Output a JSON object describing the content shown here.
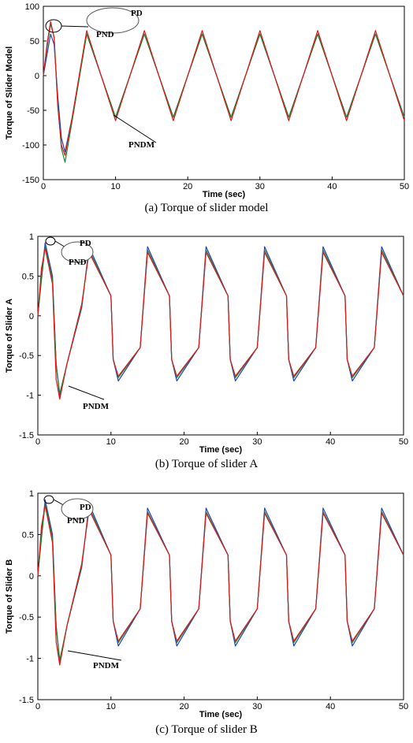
{
  "colors": {
    "pd": "#1f3fd0",
    "pnd": "#1a8a2a",
    "pndm": "#e01818",
    "axis": "#000000"
  },
  "chart_data": [
    {
      "type": "line",
      "caption": "(a)    Torque of slider model",
      "xlabel": "Time (sec)",
      "ylabel": "Torque of Slider Model",
      "xlim": [
        0,
        50
      ],
      "ylim": [
        -150,
        100
      ],
      "xticks": [
        0,
        10,
        20,
        30,
        40,
        50
      ],
      "yticks": [
        -150,
        -100,
        -50,
        0,
        50,
        100
      ],
      "grid": false,
      "period": 8,
      "series": [
        {
          "name": "PD",
          "x": [
            0,
            0.5,
            1,
            1.5,
            2,
            2.5,
            3,
            4,
            6,
            10,
            14,
            18,
            22,
            26,
            30,
            34,
            38,
            42,
            46,
            50
          ],
          "y": [
            0,
            30,
            60,
            45,
            -30,
            -90,
            -110,
            -60,
            60,
            -60,
            60,
            -60,
            60,
            -60,
            60,
            -60,
            60,
            -60,
            60,
            -60
          ]
        },
        {
          "name": "PND",
          "x": [
            0,
            0.5,
            1,
            1.5,
            2,
            2.5,
            3,
            4,
            6,
            10,
            14,
            18,
            22,
            26,
            30,
            34,
            38,
            42,
            46,
            50
          ],
          "y": [
            0,
            40,
            75,
            55,
            -40,
            -105,
            -125,
            -65,
            60,
            -60,
            60,
            -60,
            60,
            -60,
            60,
            -60,
            60,
            -60,
            60,
            -60
          ]
        },
        {
          "name": "PNDM",
          "x": [
            0,
            0.5,
            1,
            1.5,
            2,
            2.5,
            3,
            4,
            6,
            10,
            14,
            18,
            22,
            26,
            30,
            34,
            38,
            42,
            46,
            50
          ],
          "y": [
            0,
            45,
            78,
            55,
            -45,
            -100,
            -115,
            -60,
            65,
            -65,
            65,
            -65,
            65,
            -65,
            65,
            -65,
            65,
            -65,
            65,
            -65
          ]
        }
      ],
      "annotations": [
        "PD",
        "PND",
        "PNDM"
      ]
    },
    {
      "type": "line",
      "caption": "(b)    Torque of slider A",
      "xlabel": "Time (sec)",
      "ylabel": "Torque of Slider A",
      "xlim": [
        0,
        50
      ],
      "ylim": [
        -1.5,
        1
      ],
      "xticks": [
        0,
        10,
        20,
        30,
        40,
        50
      ],
      "yticks": [
        -1.5,
        -1,
        -0.5,
        0,
        0.5,
        1
      ],
      "grid": false,
      "period": 8,
      "series": [
        {
          "name": "PD",
          "x": [
            0,
            0.5,
            1,
            2,
            2.5,
            3,
            4,
            6,
            7,
            10,
            10.3,
            11,
            14,
            15,
            18,
            18.3,
            19,
            22,
            23,
            26,
            26.3,
            27,
            30,
            31,
            34,
            34.3,
            35,
            38,
            39,
            42,
            42.3,
            43,
            46,
            47,
            50
          ],
          "y": [
            0,
            0.5,
            0.92,
            0.5,
            -0.6,
            -1.02,
            -0.6,
            0.1,
            0.87,
            0.25,
            -0.55,
            -0.82,
            -0.4,
            0.87,
            0.25,
            -0.55,
            -0.82,
            -0.4,
            0.87,
            0.25,
            -0.55,
            -0.82,
            -0.4,
            0.87,
            0.25,
            -0.55,
            -0.82,
            -0.4,
            0.87,
            0.25,
            -0.55,
            -0.82,
            -0.4,
            0.87,
            0.25
          ]
        },
        {
          "name": "PND",
          "x": [
            0,
            0.5,
            1,
            2,
            2.5,
            3,
            4,
            6,
            7,
            10,
            10.3,
            11,
            14,
            15,
            18,
            18.3,
            19,
            22,
            23,
            26,
            26.3,
            27,
            30,
            31,
            34,
            34.3,
            35,
            38,
            39,
            42,
            42.3,
            43,
            46,
            47,
            50
          ],
          "y": [
            0,
            0.45,
            0.88,
            0.45,
            -0.6,
            -0.98,
            -0.6,
            0.12,
            0.83,
            0.25,
            -0.55,
            -0.78,
            -0.4,
            0.83,
            0.25,
            -0.55,
            -0.78,
            -0.4,
            0.83,
            0.25,
            -0.55,
            -0.78,
            -0.4,
            0.83,
            0.25,
            -0.55,
            -0.78,
            -0.4,
            0.83,
            0.25,
            -0.55,
            -0.78,
            -0.4,
            0.83,
            0.25
          ]
        },
        {
          "name": "PNDM",
          "x": [
            0,
            0.5,
            1,
            2,
            2.5,
            3,
            4,
            6,
            7,
            10,
            10.3,
            11,
            14,
            15,
            18,
            18.3,
            19,
            22,
            23,
            26,
            26.3,
            27,
            30,
            31,
            34,
            34.3,
            35,
            38,
            39,
            42,
            42.3,
            43,
            46,
            47,
            50
          ],
          "y": [
            0,
            0.6,
            0.85,
            0.4,
            -0.8,
            -1.05,
            -0.6,
            0.15,
            0.8,
            0.25,
            -0.55,
            -0.76,
            -0.4,
            0.8,
            0.25,
            -0.55,
            -0.76,
            -0.4,
            0.8,
            0.25,
            -0.55,
            -0.76,
            -0.4,
            0.8,
            0.25,
            -0.55,
            -0.76,
            -0.4,
            0.8,
            0.25,
            -0.55,
            -0.76,
            -0.4,
            0.8,
            0.25
          ]
        }
      ],
      "annotations": [
        "PD",
        "PND",
        "PNDM"
      ]
    },
    {
      "type": "line",
      "caption": "(c)    Torque of slider B",
      "xlabel": "Time (sec)",
      "ylabel": "Torque of Slider B",
      "xlim": [
        0,
        50
      ],
      "ylim": [
        -1.5,
        1
      ],
      "xticks": [
        0,
        10,
        20,
        30,
        40,
        50
      ],
      "yticks": [
        -1.5,
        -1,
        -0.5,
        0,
        0.5,
        1
      ],
      "grid": false,
      "period": 8,
      "series": [
        {
          "name": "PD",
          "x": [
            0,
            0.5,
            1,
            2,
            2.5,
            3,
            4,
            6,
            7,
            10,
            10.3,
            11,
            14,
            15,
            18,
            18.3,
            19,
            22,
            23,
            26,
            26.3,
            27,
            30,
            31,
            34,
            34.3,
            35,
            38,
            39,
            42,
            42.3,
            43,
            46,
            47,
            50
          ],
          "y": [
            0,
            0.5,
            0.92,
            0.5,
            -0.6,
            -1.06,
            -0.6,
            0.1,
            0.87,
            0.25,
            -0.55,
            -0.85,
            -0.4,
            0.82,
            0.25,
            -0.55,
            -0.85,
            -0.4,
            0.82,
            0.25,
            -0.55,
            -0.85,
            -0.4,
            0.82,
            0.25,
            -0.55,
            -0.85,
            -0.4,
            0.82,
            0.25,
            -0.55,
            -0.85,
            -0.4,
            0.82,
            0.25
          ]
        },
        {
          "name": "PND",
          "x": [
            0,
            0.5,
            1,
            2,
            2.5,
            3,
            4,
            6,
            7,
            10,
            10.3,
            11,
            14,
            15,
            18,
            18.3,
            19,
            22,
            23,
            26,
            26.3,
            27,
            30,
            31,
            34,
            34.3,
            35,
            38,
            39,
            42,
            42.3,
            43,
            46,
            47,
            50
          ],
          "y": [
            0,
            0.45,
            0.88,
            0.45,
            -0.6,
            -1.02,
            -0.6,
            0.12,
            0.83,
            0.25,
            -0.55,
            -0.81,
            -0.4,
            0.78,
            0.25,
            -0.55,
            -0.81,
            -0.4,
            0.78,
            0.25,
            -0.55,
            -0.81,
            -0.4,
            0.78,
            0.25,
            -0.55,
            -0.81,
            -0.4,
            0.78,
            0.25,
            -0.55,
            -0.81,
            -0.4,
            0.78,
            0.25
          ]
        },
        {
          "name": "PNDM",
          "x": [
            0,
            0.5,
            1,
            2,
            2.5,
            3,
            4,
            6,
            7,
            10,
            10.3,
            11,
            14,
            15,
            18,
            18.3,
            19,
            22,
            23,
            26,
            26.3,
            27,
            30,
            31,
            34,
            34.3,
            35,
            38,
            39,
            42,
            42.3,
            43,
            46,
            47,
            50
          ],
          "y": [
            0,
            0.6,
            0.85,
            0.4,
            -0.8,
            -1.08,
            -0.6,
            0.15,
            0.8,
            0.25,
            -0.55,
            -0.79,
            -0.4,
            0.76,
            0.25,
            -0.55,
            -0.79,
            -0.4,
            0.76,
            0.25,
            -0.55,
            -0.79,
            -0.4,
            0.76,
            0.25,
            -0.55,
            -0.79,
            -0.4,
            0.76,
            0.25,
            -0.55,
            -0.79,
            -0.4,
            0.76,
            0.25
          ]
        }
      ],
      "annotations": [
        "PD",
        "PND",
        "PNDM"
      ]
    }
  ]
}
